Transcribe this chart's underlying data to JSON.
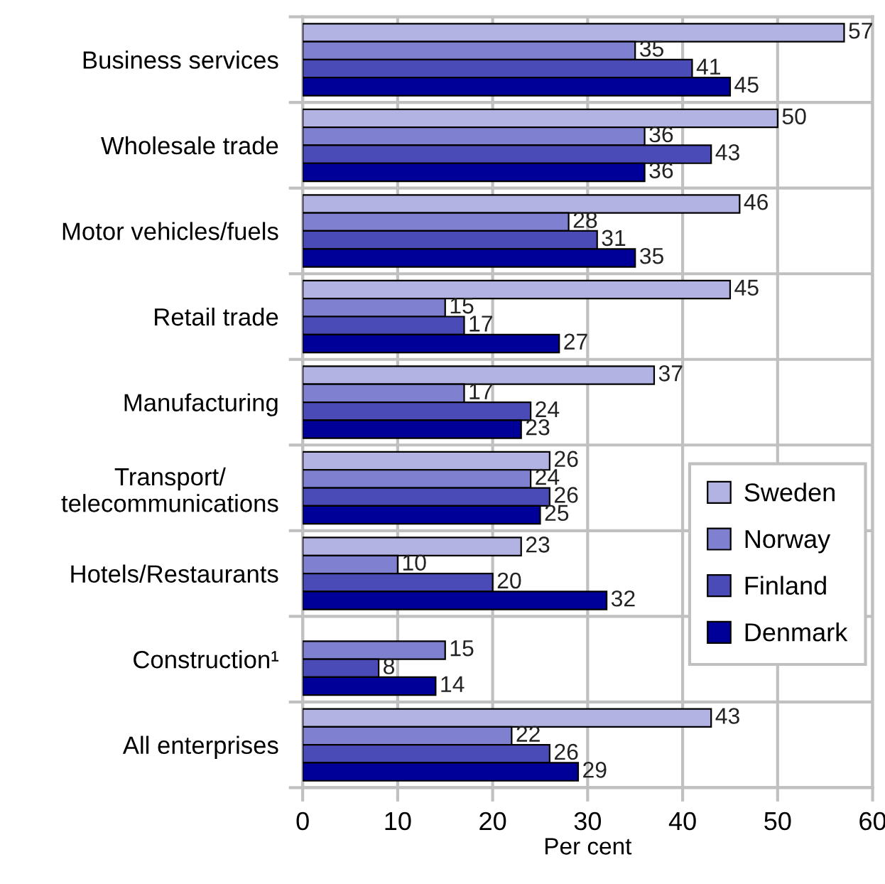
{
  "chart_data": {
    "type": "bar",
    "orientation": "horizontal",
    "xlabel": "Per cent",
    "categories": [
      "Business services",
      "Wholesale trade",
      "Motor vehicles/fuels",
      "Retail trade",
      "Manufacturing",
      "Transport/\ntelecommunications",
      "Hotels/Restaurants",
      "Construction¹",
      "All enterprises"
    ],
    "series": [
      {
        "name": "Sweden",
        "color": "#b3b3e3",
        "values": [
          57,
          50,
          46,
          45,
          37,
          26,
          23,
          null,
          43
        ]
      },
      {
        "name": "Norway",
        "color": "#8080d0",
        "values": [
          35,
          36,
          28,
          15,
          17,
          24,
          10,
          15,
          22
        ]
      },
      {
        "name": "Finland",
        "color": "#4b4bb7",
        "values": [
          41,
          43,
          31,
          17,
          24,
          26,
          20,
          8,
          26
        ]
      },
      {
        "name": "Denmark",
        "color": "#000099",
        "values": [
          45,
          36,
          35,
          27,
          23,
          25,
          32,
          14,
          29
        ]
      }
    ],
    "xlim": [
      0,
      60
    ],
    "xticks": [
      0,
      10,
      20,
      30,
      40,
      50,
      60
    ],
    "grid": true,
    "legend": "right",
    "data_labels": true
  }
}
